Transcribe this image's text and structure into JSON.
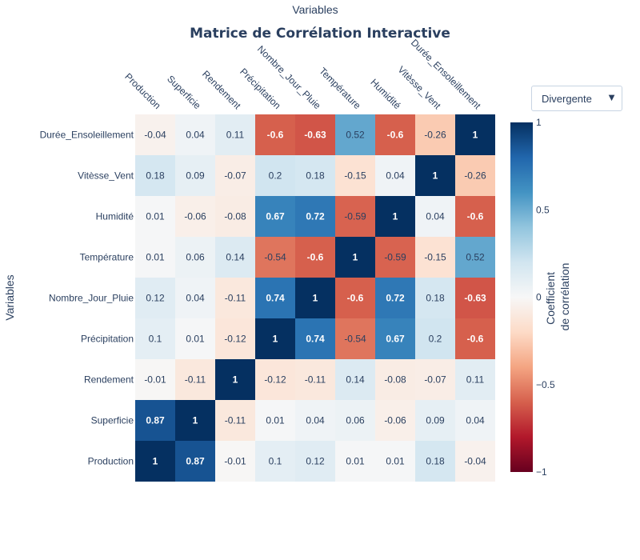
{
  "chart_data": {
    "type": "heatmap",
    "title": "Matrice de Corrélation Interactive",
    "xlabel": "Variables",
    "ylabel": "Variables",
    "x_categories": [
      "Production",
      "Superficie",
      "Rendement",
      "Précipitation",
      "Nombre_Jour_Pluie",
      "Température",
      "Humidité",
      "Vitèsse_Vent",
      "Durée_Ensoleillement"
    ],
    "y_categories_top_to_bottom": [
      "Durée_Ensoleillement",
      "Vitèsse_Vent",
      "Humidité",
      "Température",
      "Nombre_Jour_Pluie",
      "Précipitation",
      "Rendement",
      "Superficie",
      "Production"
    ],
    "values": [
      [
        -0.04,
        0.04,
        0.11,
        -0.6,
        -0.63,
        0.52,
        -0.6,
        -0.26,
        1
      ],
      [
        0.18,
        0.09,
        -0.07,
        0.2,
        0.18,
        -0.15,
        0.04,
        1,
        -0.26
      ],
      [
        0.01,
        -0.06,
        -0.08,
        0.67,
        0.72,
        -0.59,
        1,
        0.04,
        -0.6
      ],
      [
        0.01,
        0.06,
        0.14,
        -0.54,
        -0.6,
        1,
        -0.59,
        -0.15,
        0.52
      ],
      [
        0.12,
        0.04,
        -0.11,
        0.74,
        1,
        -0.6,
        0.72,
        0.18,
        -0.63
      ],
      [
        0.1,
        0.01,
        -0.12,
        1,
        0.74,
        -0.54,
        0.67,
        0.2,
        -0.6
      ],
      [
        -0.01,
        -0.11,
        1,
        -0.12,
        -0.11,
        0.14,
        -0.08,
        -0.07,
        0.11
      ],
      [
        0.87,
        1,
        -0.11,
        0.01,
        0.04,
        0.06,
        -0.06,
        0.09,
        0.04
      ],
      [
        1,
        0.87,
        -0.01,
        0.1,
        0.12,
        0.01,
        0.01,
        0.18,
        -0.04
      ]
    ],
    "colorscale": "RdBu",
    "zmin": -1,
    "zmax": 1,
    "colorbar": {
      "title_lines": [
        "Coefficient",
        "de corrélation"
      ],
      "ticks": [
        1,
        0.5,
        0,
        -0.5,
        -1
      ],
      "tick_labels": [
        "1",
        "0.5",
        "0",
        "−0.5",
        "−1"
      ]
    }
  },
  "dropdown": {
    "selected": "Divergente"
  }
}
